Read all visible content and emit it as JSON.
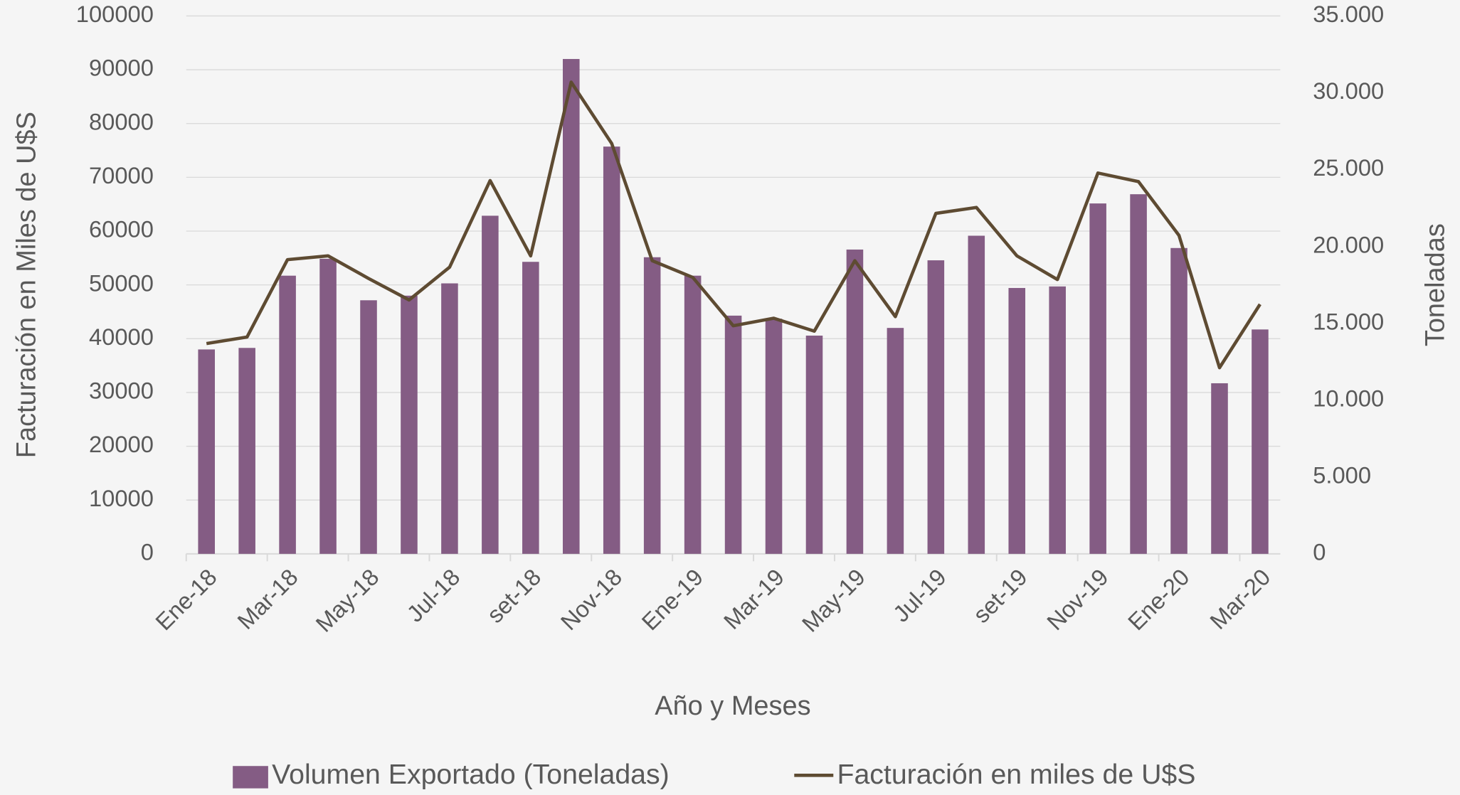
{
  "chart_data": {
    "type": "bar+line",
    "categories": [
      "Ene-18",
      null,
      "Mar-18",
      null,
      "May-18",
      null,
      "Jul-18",
      null,
      "set-18",
      null,
      "Nov-18",
      null,
      "Ene-19",
      null,
      "Mar-19",
      null,
      "May-19",
      null,
      "Jul-19",
      null,
      "set-19",
      null,
      "Nov-19",
      null,
      "Ene-20",
      null,
      "Mar-20"
    ],
    "series": [
      {
        "name": "Volumen Exportado (Toneladas)",
        "type": "bar",
        "axis": "y2",
        "color": "#845c84",
        "values": [
          13300,
          13400,
          18100,
          19200,
          16500,
          16800,
          17600,
          22000,
          19000,
          32200,
          26500,
          19300,
          18100,
          15500,
          15300,
          14200,
          19800,
          14700,
          19100,
          20700,
          17300,
          17400,
          22800,
          23400,
          19900,
          11100,
          14600
        ]
      },
      {
        "name": "Facturación en miles de U$S",
        "type": "line",
        "color": "#5e4b32",
        "values": [
          39100,
          40300,
          54700,
          55400,
          51200,
          47200,
          53300,
          69400,
          55400,
          87700,
          76300,
          54500,
          51400,
          42400,
          43800,
          41400,
          54500,
          44100,
          63300,
          64400,
          55400,
          51000,
          70800,
          69200,
          59200,
          34600,
          46400
        ]
      }
    ],
    "x_label": "Año y Meses",
    "y_label": "Facturación en Miles de U$S",
    "y2_label": "Toneladas",
    "ylim": [
      0,
      100000
    ],
    "yticks": [
      0,
      10000,
      20000,
      30000,
      40000,
      50000,
      60000,
      70000,
      80000,
      90000,
      100000
    ],
    "y2lim": [
      0,
      35000
    ],
    "y2ticks": [
      0,
      {
        "value": 5000,
        "label": "5.000"
      },
      {
        "value": 10000,
        "label": "10.000"
      },
      {
        "value": 15000,
        "label": "15.000"
      },
      {
        "value": 20000,
        "label": "20.000"
      },
      {
        "value": 25000,
        "label": "25.000"
      },
      {
        "value": 30000,
        "label": "30.000"
      },
      {
        "value": 35000,
        "label": "35.000"
      }
    ],
    "grid": true,
    "legend": "bottom"
  }
}
